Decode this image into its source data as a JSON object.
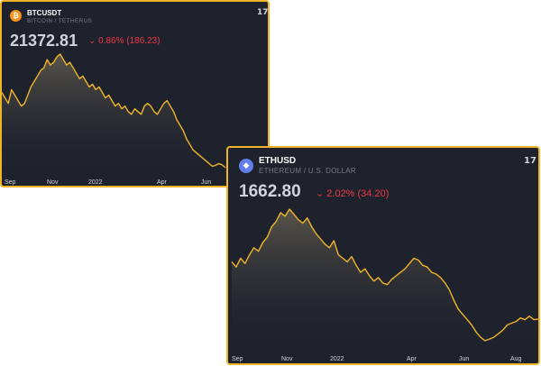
{
  "colors": {
    "border": "#f0b429",
    "background": "#1e222d",
    "line": "#f0b429",
    "down": "#f23645"
  },
  "widgets": [
    {
      "symbol": "BTCUSDT",
      "description": "BITCOIN / TETHERUS",
      "price": "21372.81",
      "change": "⌄ 0.86% (186.23)",
      "logo_glyph": "₿",
      "logo_color": "#f7931a",
      "brand_icon": "tradingview-icon",
      "brand_glyph": "17",
      "x_ticks": [
        "Sep",
        "Nov",
        "2022",
        "Apr",
        "Jun"
      ],
      "chart_data": {
        "type": "area",
        "x_ticks": [
          "Sep",
          "Nov",
          "2022",
          "Apr",
          "Jun"
        ],
        "values": [
          48,
          46,
          44,
          49,
          47,
          45,
          43,
          44,
          47,
          50,
          52,
          54,
          56,
          57,
          60,
          58,
          59,
          61,
          62,
          60,
          58,
          59,
          57,
          55,
          53,
          54,
          52,
          50,
          51,
          49,
          50,
          48,
          46,
          47,
          45,
          43,
          44,
          42,
          43,
          41,
          40,
          42,
          41,
          40,
          43,
          44,
          43,
          41,
          40,
          42,
          44,
          45,
          43,
          41,
          38,
          36,
          34,
          31,
          29,
          27,
          26,
          25,
          24,
          23,
          22,
          21,
          21.4,
          22,
          21.5,
          20.5
        ]
      }
    },
    {
      "symbol": "ETHUSD",
      "description": "ETHEREUM / U.S. DOLLAR",
      "price": "1662.80",
      "change": "⌄ 2.02% (34.20)",
      "logo_glyph": "◆",
      "logo_color": "#627eea",
      "brand_icon": "tradingview-icon",
      "brand_glyph": "17",
      "x_ticks": [
        "Sep",
        "Nov",
        "2022",
        "Apr",
        "Jun",
        "Aug"
      ],
      "chart_data": {
        "type": "area",
        "x_ticks": [
          "Sep",
          "Nov",
          "2022",
          "Apr",
          "Jun",
          "Aug"
        ],
        "values": [
          3300,
          3150,
          3400,
          3250,
          3500,
          3700,
          3600,
          3850,
          4000,
          4300,
          4450,
          4700,
          4600,
          4800,
          4650,
          4500,
          4400,
          4550,
          4300,
          4100,
          3950,
          3800,
          3700,
          3900,
          3500,
          3400,
          3300,
          3450,
          3200,
          3000,
          3100,
          2900,
          2750,
          2850,
          2700,
          2650,
          2800,
          2900,
          3000,
          3100,
          3250,
          3400,
          3350,
          3200,
          3150,
          3000,
          2950,
          2850,
          2700,
          2500,
          2200,
          1950,
          1800,
          1650,
          1500,
          1300,
          1150,
          1050,
          1100,
          1150,
          1250,
          1350,
          1500,
          1550,
          1600,
          1700,
          1650,
          1750,
          1650,
          1662.8
        ]
      }
    }
  ]
}
